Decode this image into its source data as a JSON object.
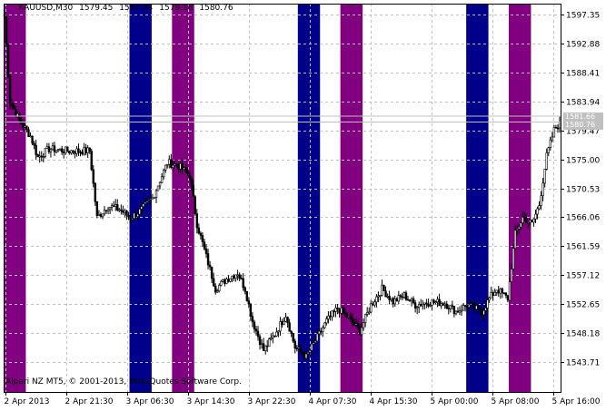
{
  "header": {
    "symbol": "XAUUSD,M30",
    "open": "1579.45",
    "high": "1581.44",
    "low": "1579.18",
    "close": "1580.76"
  },
  "footer": {
    "copyright": "Alpari NZ MT5, © 2001-2013, MetaQuotes Software Corp."
  },
  "price_labels": {
    "ask": "1581.66",
    "bid": "1580.76"
  },
  "colors": {
    "background": "#ffffff",
    "grid": "#c0c0c0",
    "candle": "#000000",
    "session_blue": "#00008b",
    "session_purple": "#800080",
    "bid_line": "#c0c0c0"
  },
  "chart_data": {
    "type": "candlestick",
    "symbol": "XAUUSD",
    "timeframe": "M30",
    "y_ticks": [
      "1597.35",
      "1592.88",
      "1588.41",
      "1583.94",
      "1579.47",
      "1575.00",
      "1570.53",
      "1566.06",
      "1561.59",
      "1557.12",
      "1552.65",
      "1548.18",
      "1543.71"
    ],
    "ylim": [
      1541.5,
      1599.5
    ],
    "x_ticks": [
      "2 Apr 2013",
      "2 Apr 21:30",
      "3 Apr 06:30",
      "3 Apr 14:30",
      "3 Apr 22:30",
      "4 Apr 07:30",
      "4 Apr 15:30",
      "5 Apr 00:00",
      "5 Apr 08:00",
      "5 Apr 16:00"
    ],
    "session_bands": [
      {
        "color": "purple",
        "start_bar": 0,
        "end_bar": 11
      },
      {
        "color": "blue",
        "start_bar": 68,
        "end_bar": 79
      },
      {
        "color": "purple",
        "start_bar": 91,
        "end_bar": 102
      },
      {
        "color": "blue",
        "start_bar": 159,
        "end_bar": 170
      },
      {
        "color": "purple",
        "start_bar": 182,
        "end_bar": 193
      },
      {
        "color": "blue",
        "start_bar": 250,
        "end_bar": 261
      },
      {
        "color": "purple",
        "start_bar": 273,
        "end_bar": 284
      }
    ],
    "close_points": [
      [
        0,
        1597.0
      ],
      [
        3,
        1583.9
      ],
      [
        8,
        1581.0
      ],
      [
        14,
        1578.6
      ],
      [
        18,
        1575.3
      ],
      [
        24,
        1576.6
      ],
      [
        34,
        1576.3
      ],
      [
        46,
        1576.3
      ],
      [
        50,
        1566.0
      ],
      [
        56,
        1567.8
      ],
      [
        62,
        1567.3
      ],
      [
        68,
        1566.0
      ],
      [
        73,
        1567.0
      ],
      [
        80,
        1569.0
      ],
      [
        88,
        1574.5
      ],
      [
        94,
        1574.0
      ],
      [
        100,
        1572.5
      ],
      [
        104,
        1565.0
      ],
      [
        108,
        1561.0
      ],
      [
        114,
        1555.0
      ],
      [
        120,
        1556.5
      ],
      [
        126,
        1557.5
      ],
      [
        130,
        1555.0
      ],
      [
        134,
        1550.0
      ],
      [
        140,
        1545.5
      ],
      [
        146,
        1548.0
      ],
      [
        152,
        1551.0
      ],
      [
        157,
        1546.0
      ],
      [
        163,
        1544.5
      ],
      [
        168,
        1547.0
      ],
      [
        174,
        1550.0
      ],
      [
        180,
        1552.0
      ],
      [
        186,
        1550.5
      ],
      [
        192,
        1548.5
      ],
      [
        198,
        1552.5
      ],
      [
        204,
        1555.0
      ],
      [
        210,
        1553.0
      ],
      [
        216,
        1554.0
      ],
      [
        222,
        1552.5
      ],
      [
        230,
        1553.0
      ],
      [
        238,
        1552.8
      ],
      [
        244,
        1551.5
      ],
      [
        250,
        1552.5
      ],
      [
        254,
        1552.0
      ],
      [
        258,
        1551.5
      ],
      [
        262,
        1553.5
      ],
      [
        266,
        1555.0
      ],
      [
        272,
        1553.5
      ],
      [
        276,
        1563.5
      ],
      [
        280,
        1566.0
      ],
      [
        285,
        1565.0
      ],
      [
        289,
        1568.0
      ],
      [
        293,
        1575.5
      ],
      [
        297,
        1579.5
      ],
      [
        300,
        1580.76
      ]
    ],
    "last_bid": 1580.76,
    "last_ask": 1581.66
  }
}
